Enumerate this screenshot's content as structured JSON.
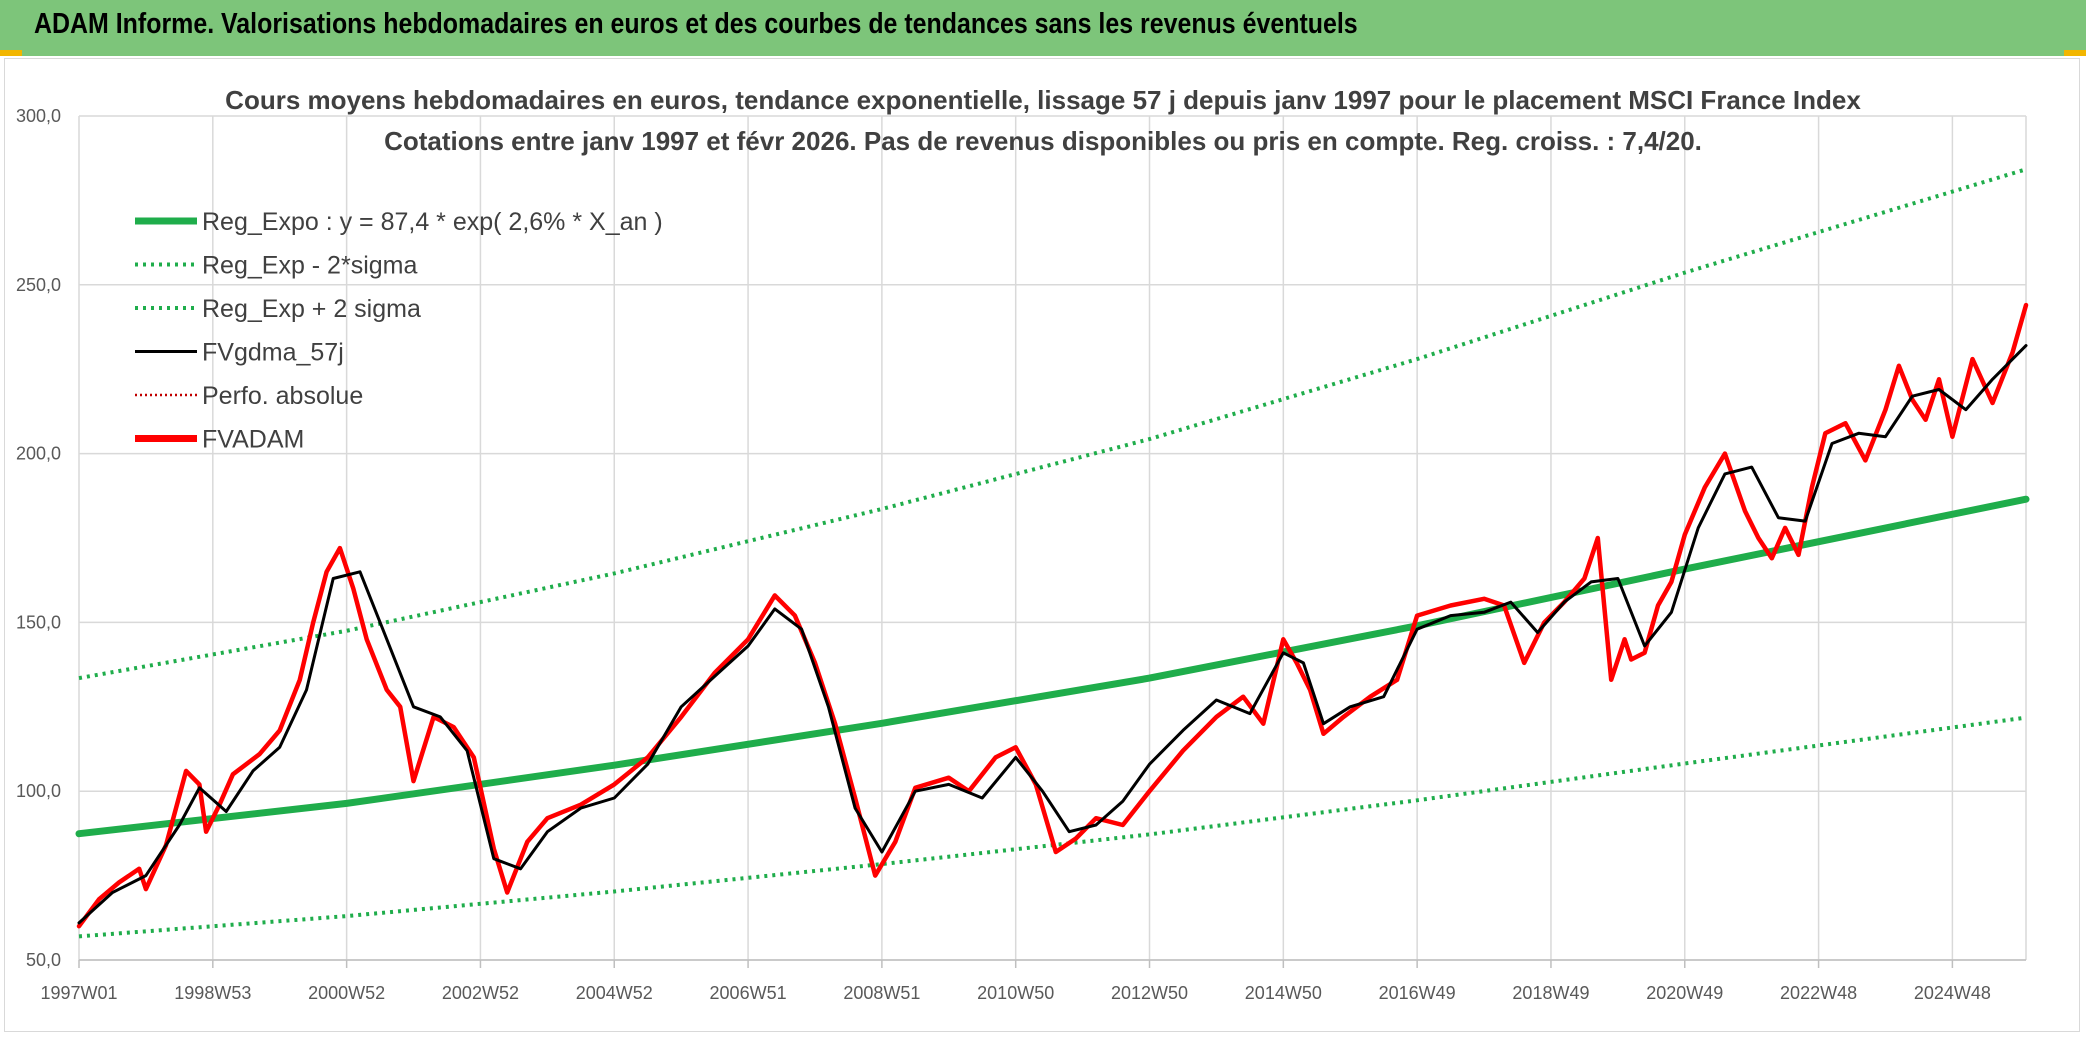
{
  "header": {
    "title": "ADAM Informe. Valorisations hebdomadaires en euros et des courbes de tendances sans les revenus éventuels"
  },
  "colors": {
    "banner": "#7dc57a",
    "accent": "#f2b600",
    "green": "#1fad4b",
    "black": "#000000",
    "red": "#ff0000"
  },
  "chart_data": {
    "type": "line",
    "title": "Cours moyens hebdomadaires en euros, tendance exponentielle, lissage 57 j depuis janv 1997 pour le placement MSCI France Index",
    "subtitle": "Cotations entre janv 1997 et févr 2026. Pas de revenus disponibles ou pris en compte. Reg. croiss. : 7,4/20.",
    "xlabel": "",
    "ylabel": "",
    "ylim": [
      50,
      300
    ],
    "xlim": [
      1997.0,
      2026.1
    ],
    "yticks": [
      "50,0",
      "100,0",
      "150,0",
      "200,0",
      "250,0",
      "300,0"
    ],
    "ytick_values": [
      50,
      100,
      150,
      200,
      250,
      300
    ],
    "xticks": [
      "1997W01",
      "1998W53",
      "2000W52",
      "2002W52",
      "2004W52",
      "2006W51",
      "2008W51",
      "2010W50",
      "2012W50",
      "2014W50",
      "2016W49",
      "2018W49",
      "2020W49",
      "2022W48",
      "2024W48"
    ],
    "xtick_values": [
      1997.0,
      1999.0,
      2001.0,
      2003.0,
      2005.0,
      2007.0,
      2009.0,
      2011.0,
      2013.0,
      2015.0,
      2017.0,
      2019.0,
      2021.0,
      2023.0,
      2025.0
    ],
    "grid": true,
    "legend_position": "top-left",
    "series": [
      {
        "name": "Reg_Expo : y = 87,4 * exp( 2,6% *  X_an )",
        "style": "thick",
        "color": "#1fad4b",
        "x": [
          1997.0,
          2001.0,
          2005.0,
          2009.0,
          2013.0,
          2017.0,
          2021.0,
          2026.1
        ],
        "values": [
          87.4,
          96.4,
          107.7,
          120.1,
          133.5,
          149.0,
          165.8,
          186.5
        ]
      },
      {
        "name": "Reg_Exp - 2*sigma",
        "style": "dotted",
        "color": "#1fad4b",
        "x": [
          1997.0,
          2001.0,
          2005.0,
          2009.0,
          2013.0,
          2017.0,
          2021.0,
          2026.1
        ],
        "values": [
          57.0,
          63.0,
          70.3,
          78.4,
          87.2,
          97.3,
          108.2,
          121.8
        ]
      },
      {
        "name": "Reg_Exp + 2 sigma",
        "style": "dotted",
        "color": "#1fad4b",
        "x": [
          1997.0,
          2001.0,
          2005.0,
          2009.0,
          2013.0,
          2017.0,
          2021.0,
          2026.1
        ],
        "values": [
          133.5,
          147.5,
          164.5,
          183.6,
          204.3,
          228.0,
          253.6,
          284.2
        ]
      },
      {
        "name": "FVgdma_57j",
        "style": "solid",
        "color": "#000000",
        "x": [
          1997.0,
          1997.5,
          1998.0,
          1998.5,
          1998.8,
          1999.2,
          1999.6,
          2000.0,
          2000.4,
          2000.8,
          2001.2,
          2001.6,
          2002.0,
          2002.4,
          2002.8,
          2003.2,
          2003.6,
          2004.0,
          2004.5,
          2005.0,
          2005.5,
          2006.0,
          2006.5,
          2007.0,
          2007.4,
          2007.8,
          2008.2,
          2008.6,
          2009.0,
          2009.5,
          2010.0,
          2010.5,
          2011.0,
          2011.4,
          2011.8,
          2012.2,
          2012.6,
          2013.0,
          2013.5,
          2014.0,
          2014.5,
          2015.0,
          2015.3,
          2015.6,
          2016.0,
          2016.5,
          2017.0,
          2017.5,
          2018.0,
          2018.4,
          2018.8,
          2019.2,
          2019.6,
          2020.0,
          2020.4,
          2020.8,
          2021.2,
          2021.6,
          2022.0,
          2022.4,
          2022.8,
          2023.2,
          2023.6,
          2024.0,
          2024.4,
          2024.8,
          2025.2,
          2025.6,
          2026.1
        ],
        "values": [
          61,
          70,
          75,
          90,
          101,
          94,
          106,
          113,
          130,
          163,
          165,
          145,
          125,
          122,
          112,
          80,
          77,
          88,
          95,
          98,
          108,
          125,
          134,
          143,
          154,
          148,
          125,
          95,
          82,
          100,
          102,
          98,
          110,
          100,
          88,
          90,
          97,
          108,
          118,
          127,
          123,
          141,
          138,
          120,
          125,
          128,
          148,
          152,
          153,
          156,
          147,
          156,
          162,
          163,
          143,
          153,
          178,
          194,
          196,
          181,
          180,
          203,
          206,
          205,
          217,
          219,
          213,
          222,
          232
        ]
      },
      {
        "name": "Perfo. absolue",
        "style": "dotted",
        "color": "#c00000",
        "x": [],
        "values": []
      },
      {
        "name": "FVADAM",
        "style": "thick",
        "color": "#ff0000",
        "x": [
          1997.0,
          1997.3,
          1997.6,
          1997.9,
          1998.0,
          1998.3,
          1998.6,
          1998.8,
          1998.9,
          1999.1,
          1999.3,
          1999.7,
          2000.0,
          2000.3,
          2000.5,
          2000.7,
          2000.9,
          2001.1,
          2001.3,
          2001.6,
          2001.8,
          2002.0,
          2002.3,
          2002.6,
          2002.9,
          2003.2,
          2003.4,
          2003.7,
          2004.0,
          2004.5,
          2005.0,
          2005.5,
          2006.0,
          2006.5,
          2007.0,
          2007.4,
          2007.7,
          2008.0,
          2008.3,
          2008.6,
          2008.9,
          2009.2,
          2009.5,
          2010.0,
          2010.3,
          2010.7,
          2011.0,
          2011.3,
          2011.6,
          2011.9,
          2012.2,
          2012.6,
          2013.0,
          2013.5,
          2014.0,
          2014.4,
          2014.7,
          2015.0,
          2015.2,
          2015.4,
          2015.6,
          2015.9,
          2016.3,
          2016.7,
          2017.0,
          2017.5,
          2018.0,
          2018.3,
          2018.6,
          2018.9,
          2019.2,
          2019.5,
          2019.7,
          2019.9,
          2020.1,
          2020.2,
          2020.4,
          2020.6,
          2020.8,
          2021.0,
          2021.3,
          2021.6,
          2021.9,
          2022.1,
          2022.3,
          2022.5,
          2022.7,
          2022.9,
          2023.1,
          2023.4,
          2023.7,
          2024.0,
          2024.2,
          2024.4,
          2024.6,
          2024.8,
          2025.0,
          2025.3,
          2025.6,
          2025.9,
          2026.1
        ],
        "values": [
          60,
          68,
          73,
          77,
          71,
          84,
          106,
          102,
          88,
          96,
          105,
          111,
          118,
          133,
          150,
          165,
          172,
          160,
          145,
          130,
          125,
          103,
          122,
          119,
          110,
          83,
          70,
          85,
          92,
          96,
          102,
          110,
          122,
          135,
          145,
          158,
          152,
          138,
          120,
          98,
          75,
          85,
          101,
          104,
          100,
          110,
          113,
          102,
          82,
          86,
          92,
          90,
          100,
          112,
          122,
          128,
          120,
          145,
          138,
          130,
          117,
          122,
          128,
          133,
          152,
          155,
          157,
          155,
          138,
          150,
          156,
          163,
          175,
          133,
          145,
          139,
          141,
          155,
          162,
          176,
          190,
          200,
          183,
          175,
          169,
          178,
          170,
          190,
          206,
          209,
          198,
          213,
          226,
          216,
          210,
          222,
          205,
          228,
          215,
          230,
          244
        ]
      }
    ]
  }
}
